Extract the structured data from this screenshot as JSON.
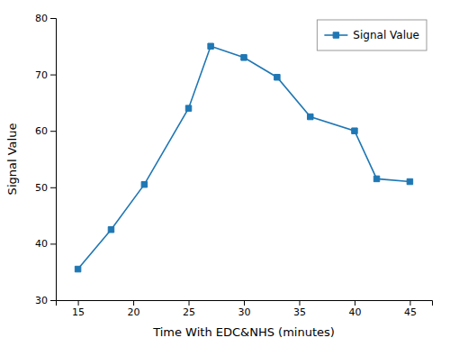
{
  "chart_data": {
    "type": "line",
    "x": [
      15,
      18,
      21,
      25,
      27,
      30,
      33,
      36,
      40,
      42,
      45
    ],
    "series": [
      {
        "name": "Signal Value",
        "marker": "square",
        "values": [
          35.5,
          42.5,
          50.5,
          64.0,
          75.0,
          73.0,
          69.5,
          62.5,
          60.0,
          51.5,
          51.0
        ]
      }
    ],
    "xlabel": "Time With EDC&NHS (minutes)",
    "ylabel": "Signal Value",
    "xlim": [
      13,
      47
    ],
    "ylim": [
      30,
      80
    ],
    "xticks": [
      15,
      20,
      25,
      30,
      35,
      40,
      45
    ],
    "yticks": [
      30,
      40,
      50,
      60,
      70,
      80
    ],
    "grid": false,
    "legend": "upper right"
  }
}
